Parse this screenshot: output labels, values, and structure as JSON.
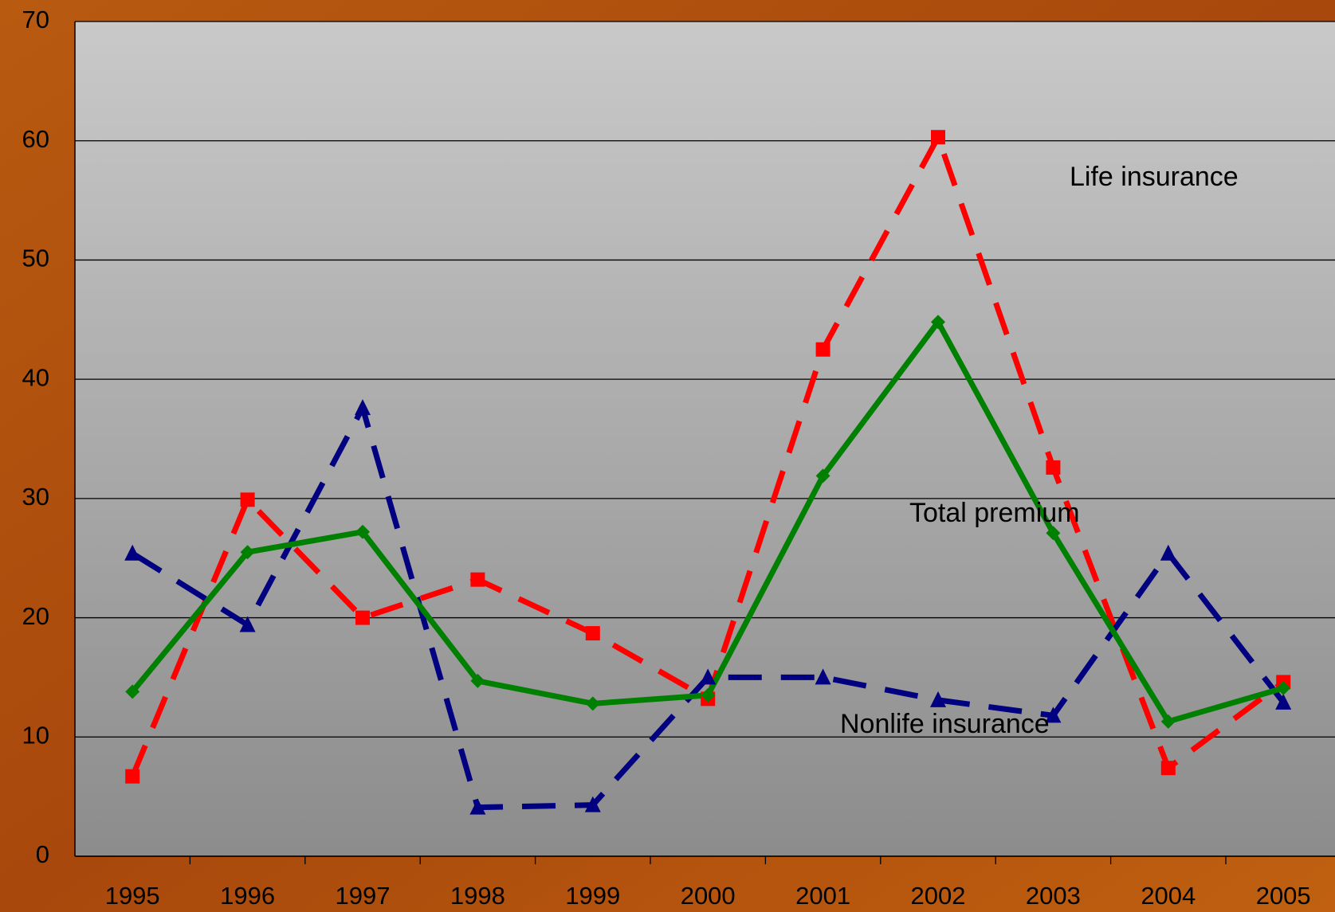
{
  "chart_data": {
    "type": "line",
    "categories": [
      "1995",
      "1996",
      "1997",
      "1998",
      "1999",
      "2000",
      "2001",
      "2002",
      "2003",
      "2004",
      "2005"
    ],
    "series": [
      {
        "name": "Life insurance",
        "color": "#ff0000",
        "marker": "square",
        "linestyle": "dashed",
        "values": [
          6.7,
          29.9,
          20.0,
          23.2,
          18.7,
          13.2,
          42.5,
          60.3,
          32.6,
          7.4,
          14.6
        ]
      },
      {
        "name": "Nonlife insurance",
        "color": "#000080",
        "marker": "triangle",
        "linestyle": "dashed",
        "values": [
          25.4,
          19.4,
          37.6,
          4.1,
          4.3,
          15.0,
          15.0,
          13.1,
          11.8,
          25.4,
          12.9
        ]
      },
      {
        "name": "Total premium",
        "color": "#008000",
        "marker": "diamond",
        "linestyle": "solid",
        "values": [
          13.8,
          25.5,
          27.2,
          14.7,
          12.8,
          13.5,
          31.9,
          44.8,
          27.1,
          11.3,
          14.1
        ]
      }
    ],
    "ylim": [
      0,
      70
    ],
    "yticks": [
      0,
      10,
      20,
      30,
      40,
      50,
      60,
      70
    ],
    "grid": true
  }
}
